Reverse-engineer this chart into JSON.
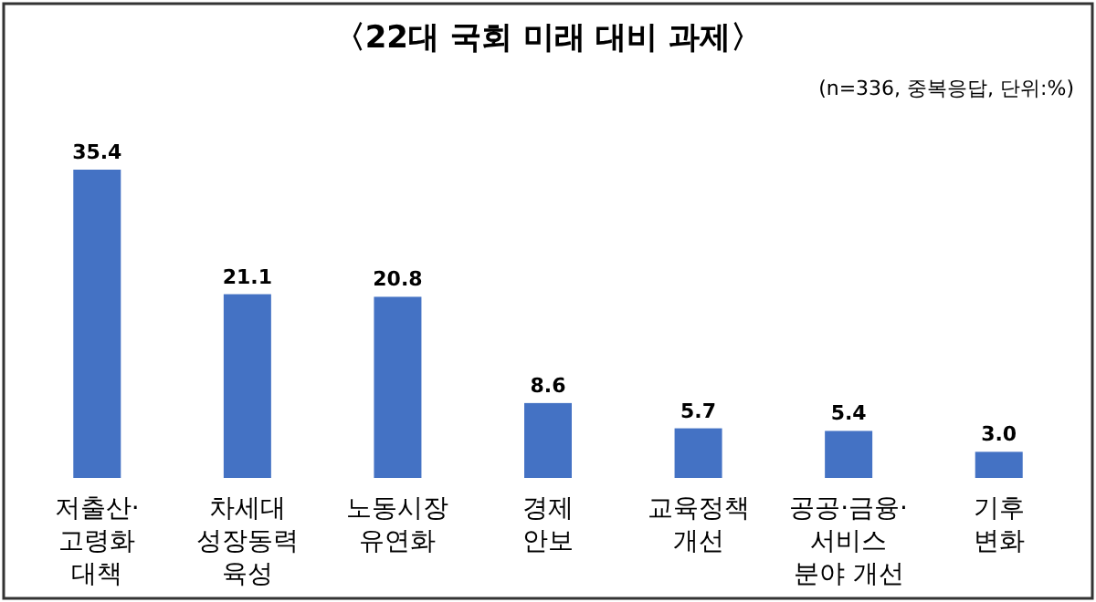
{
  "chart_data": {
    "type": "bar",
    "title": "〈22대 국회 미래 대비 과제〉",
    "subtitle": "(n=336, 중복응답, 단위:%)",
    "categories": [
      "저출산·\n고령화\n대책",
      "차세대\n성장동력\n육성",
      "노동시장\n유연화",
      "경제\n안보",
      "교육정책\n개선",
      "공공·금융·\n서비스\n분야 개선",
      "기후\n변화"
    ],
    "values": [
      35.4,
      21.1,
      20.8,
      8.6,
      5.7,
      5.4,
      3.0
    ],
    "value_labels": [
      "35.4",
      "21.1",
      "20.8",
      "8.6",
      "5.7",
      "5.4",
      "3.0"
    ],
    "color": "#4472c4"
  }
}
